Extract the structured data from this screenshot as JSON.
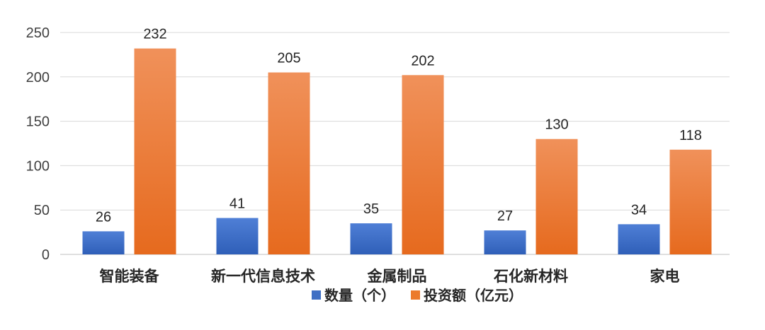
{
  "chart_data": {
    "type": "bar",
    "categories": [
      "智能装备",
      "新一代信息技术",
      "金属制品",
      "石化新材料",
      "家电"
    ],
    "series": [
      {
        "name": "数量（个）",
        "values": [
          26,
          41,
          35,
          27,
          34
        ],
        "color": "#4472C4"
      },
      {
        "name": "投资额（亿元）",
        "values": [
          232,
          205,
          202,
          130,
          118
        ],
        "color": "#ED7D31"
      }
    ],
    "y_ticks": [
      0,
      50,
      100,
      150,
      200,
      250
    ],
    "ylim": [
      0,
      250
    ],
    "grid": true,
    "legend_position": "bottom"
  }
}
